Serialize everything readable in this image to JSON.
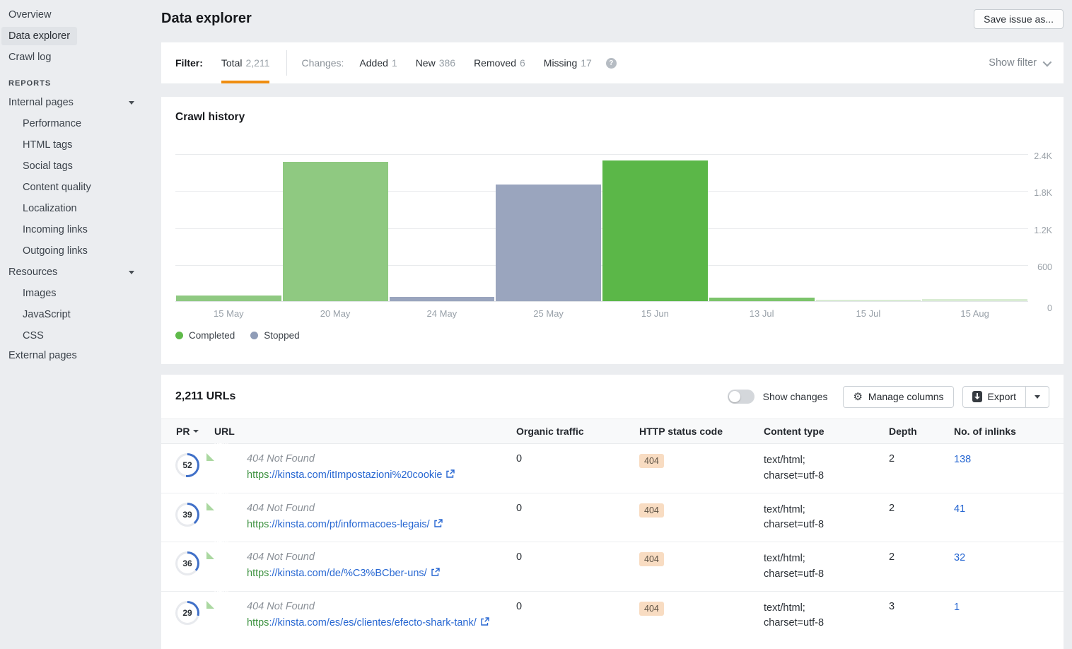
{
  "sidebar": {
    "top_items": [
      {
        "label": "Overview",
        "active": false
      },
      {
        "label": "Data explorer",
        "active": true
      },
      {
        "label": "Crawl log",
        "active": false
      }
    ],
    "reports_label": "REPORTS",
    "internal_pages": {
      "label": "Internal pages",
      "children": [
        "Performance",
        "HTML tags",
        "Social tags",
        "Content quality",
        "Localization",
        "Incoming links",
        "Outgoing links"
      ]
    },
    "resources": {
      "label": "Resources",
      "children": [
        "Images",
        "JavaScript",
        "CSS"
      ]
    },
    "external_pages_label": "External pages"
  },
  "header": {
    "title": "Data explorer",
    "save_button": "Save issue as..."
  },
  "filter": {
    "label": "Filter:",
    "total_label": "Total",
    "total_count": "2,211",
    "changes_label": "Changes:",
    "change_tabs": [
      {
        "label": "Added",
        "count": "1"
      },
      {
        "label": "New",
        "count": "386"
      },
      {
        "label": "Removed",
        "count": "6"
      },
      {
        "label": "Missing",
        "count": "17"
      }
    ],
    "help_icon": "?",
    "show_filter": "Show filter"
  },
  "chart_data": {
    "type": "bar",
    "title": "Crawl history",
    "ylim": [
      0,
      2400
    ],
    "yticks": [
      "2.4K",
      "1.8K",
      "1.2K",
      "600",
      "0"
    ],
    "grid": true,
    "legend_position": "bottom-left",
    "legend": [
      {
        "name": "Completed",
        "color": "#5fba4a"
      },
      {
        "name": "Stopped",
        "color": "#8f9cb7"
      }
    ],
    "categories": [
      "15 May",
      "20 May",
      "24 May",
      "25 May",
      "15 Jun",
      "13 Jul",
      "15 Jul",
      "15 Aug"
    ],
    "bars": [
      {
        "label": "15 May",
        "series": "Completed",
        "value": 90,
        "color": "#8fc981"
      },
      {
        "label": "20 May",
        "series": "Completed",
        "value": 2260,
        "color": "#8fc981"
      },
      {
        "label": "24 May",
        "series": "Stopped",
        "value": 70,
        "color": "#9aa5be"
      },
      {
        "label": "25 May",
        "series": "Stopped",
        "value": 1900,
        "color": "#9aa5be"
      },
      {
        "label": "15 Jun",
        "series": "Completed",
        "value": 2280,
        "color": "#5bb748"
      },
      {
        "label": "13 Jul",
        "series": "Completed",
        "value": 60,
        "color": "#7cc46b"
      },
      {
        "label": "15 Jul",
        "series": "Completed",
        "value": 25,
        "color": "#d9ecd3"
      },
      {
        "label": "15 Aug",
        "series": "Completed",
        "value": 35,
        "color": "#d9ecd3"
      }
    ]
  },
  "table": {
    "title": "2,211 URLs",
    "toolbar": {
      "show_changes_label": "Show changes",
      "toggle_state": "off",
      "manage_columns_label": "Manage columns",
      "export_label": "Export"
    },
    "columns": [
      "PR",
      "URL",
      "Organic traffic",
      "HTTP status code",
      "Content type",
      "Depth",
      "No. of inlinks"
    ],
    "rows": [
      {
        "pr": "52",
        "file_type": "HTML",
        "status_title": "404 Not Found",
        "url_scheme": "https",
        "url_rest": "://kinsta.com/itImpostazioni%20cookie",
        "organic_traffic": "0",
        "http_status": "404",
        "content_type_line1": "text/html;",
        "content_type_line2": "charset=utf-8",
        "depth": "2",
        "inlinks": "138"
      },
      {
        "pr": "39",
        "file_type": "HTML",
        "status_title": "404 Not Found",
        "url_scheme": "https",
        "url_rest": "://kinsta.com/pt/informacoes-legais/",
        "organic_traffic": "0",
        "http_status": "404",
        "content_type_line1": "text/html;",
        "content_type_line2": "charset=utf-8",
        "depth": "2",
        "inlinks": "41"
      },
      {
        "pr": "36",
        "file_type": "HTML",
        "status_title": "404 Not Found",
        "url_scheme": "https",
        "url_rest": "://kinsta.com/de/%C3%BCber-uns/",
        "organic_traffic": "0",
        "http_status": "404",
        "content_type_line1": "text/html;",
        "content_type_line2": "charset=utf-8",
        "depth": "2",
        "inlinks": "32"
      },
      {
        "pr": "29",
        "file_type": "HTML",
        "status_title": "404 Not Found",
        "url_scheme": "https",
        "url_rest": "://kinsta.com/es/es/clientes/efecto-shark-tank/",
        "organic_traffic": "0",
        "http_status": "404",
        "content_type_line1": "text/html;",
        "content_type_line2": "charset=utf-8",
        "depth": "3",
        "inlinks": "1"
      }
    ]
  },
  "colors": {
    "accent_orange": "#ef8d10",
    "link_blue": "#2767d2",
    "url_scheme_green": "#3f9342",
    "status_badge_bg": "#f8dcc2",
    "pr_ring_blue": "#4070c8",
    "pr_ring_track": "#e8eaee",
    "completed_green": "#5fba4a",
    "stopped_gray": "#8f9cb7",
    "page_bg": "#ebedf0"
  }
}
